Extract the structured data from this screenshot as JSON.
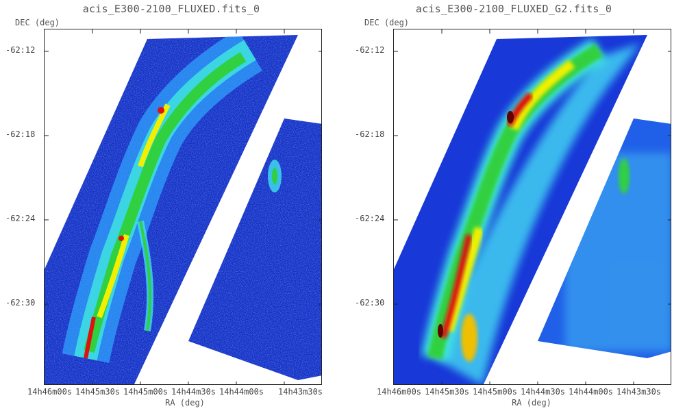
{
  "panels": [
    {
      "title": "acis_E300-2100_FLUXED.fits_0",
      "ylabel": "DEC (deg)",
      "xlabel": "RA (deg)",
      "yticks": [
        "-62:12",
        "-62:18",
        "-62:24",
        "-62:30"
      ],
      "xticks": [
        "14h46m00s",
        "14h45m30s",
        "14h45m00s",
        "14h44m30s",
        "14h44m00s",
        "14h43m30s"
      ]
    },
    {
      "title": "acis_E300-2100_FLUXED_G2.fits_0",
      "ylabel": "DEC (deg)",
      "xlabel": "RA (deg)",
      "yticks": [
        "-62:12",
        "-62:18",
        "-62:24",
        "-62:30"
      ],
      "xticks": [
        "14h46m00s",
        "14h45m30s",
        "14h45m00s",
        "14h44m30s",
        "14h44m00s",
        "14h43m30s"
      ]
    }
  ],
  "colors": {
    "background": "#0000c0",
    "mid": "#20a0ff",
    "low": "#40e0f0",
    "green": "#20d040",
    "yellow": "#f0f000",
    "red": "#e01010",
    "dark_red": "#600000"
  }
}
